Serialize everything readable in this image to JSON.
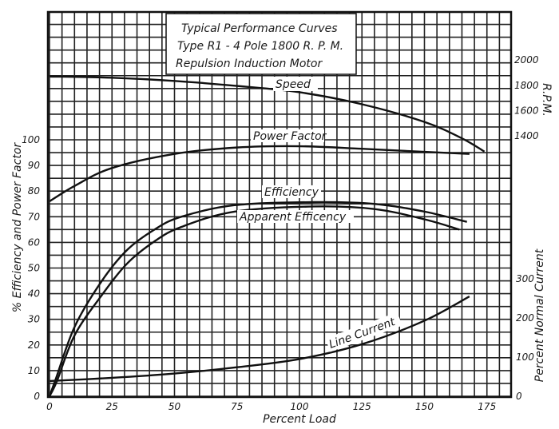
{
  "chart_data": {
    "type": "line",
    "title": [
      "Typical Performance Curves",
      "Type R1 - 4 Pole 1800 R. P. M.",
      "Repulsion Induction Motor"
    ],
    "xlabel": "Percent Load",
    "ylabel_left": "% Efficiency and Power Factor",
    "ylabel_right_speed": "R.P.M.",
    "ylabel_right_current": "Percent Normal Current",
    "xlim": [
      0,
      185
    ],
    "ylim_left": [
      0,
      100
    ],
    "x_ticks": [
      "0",
      "25",
      "50",
      "75",
      "100",
      "125",
      "150",
      "175"
    ],
    "y_ticks_left": [
      "0",
      "10",
      "20",
      "30",
      "40",
      "50",
      "60",
      "70",
      "80",
      "90",
      "100"
    ],
    "y_ticks_speed": [
      "1400",
      "1600",
      "1800",
      "2000"
    ],
    "y_ticks_current": [
      "0",
      "100",
      "200",
      "300"
    ],
    "grid": true,
    "series": [
      {
        "name": "Speed",
        "axis": "speed",
        "x": [
          0,
          25,
          50,
          75,
          100,
          125,
          150,
          165,
          174
        ],
        "y": [
          1870,
          1860,
          1835,
          1795,
          1745,
          1650,
          1510,
          1380,
          1275
        ]
      },
      {
        "name": "Power Factor",
        "axis": "left",
        "x": [
          0,
          10,
          25,
          50,
          75,
          100,
          125,
          150,
          168
        ],
        "y": [
          76,
          82,
          89,
          94.5,
          97,
          97.5,
          96.5,
          95.3,
          94.5
        ]
      },
      {
        "name": "Efficiency",
        "axis": "left",
        "x": [
          0,
          2.6,
          10,
          20.6,
          31,
          42,
          52.7,
          74,
          106,
          130,
          150,
          167
        ],
        "y": [
          0,
          7,
          27,
          44.5,
          57,
          65,
          70,
          74.5,
          75.7,
          75,
          72,
          68
        ]
      },
      {
        "name": "Apparent Efficency",
        "axis": "left",
        "x": [
          0,
          3,
          10,
          20.6,
          31,
          42,
          52.7,
          74,
          106,
          130,
          150,
          164
        ],
        "y": [
          0,
          6,
          23.7,
          39,
          51.7,
          60.4,
          66,
          72,
          74,
          73,
          69,
          65
        ]
      },
      {
        "name": "Line Current",
        "axis": "current",
        "x": [
          0,
          25,
          50,
          75,
          100,
          125,
          150,
          168
        ],
        "y": [
          39,
          47,
          58,
          74,
          95,
          133,
          193,
          255
        ]
      }
    ]
  }
}
